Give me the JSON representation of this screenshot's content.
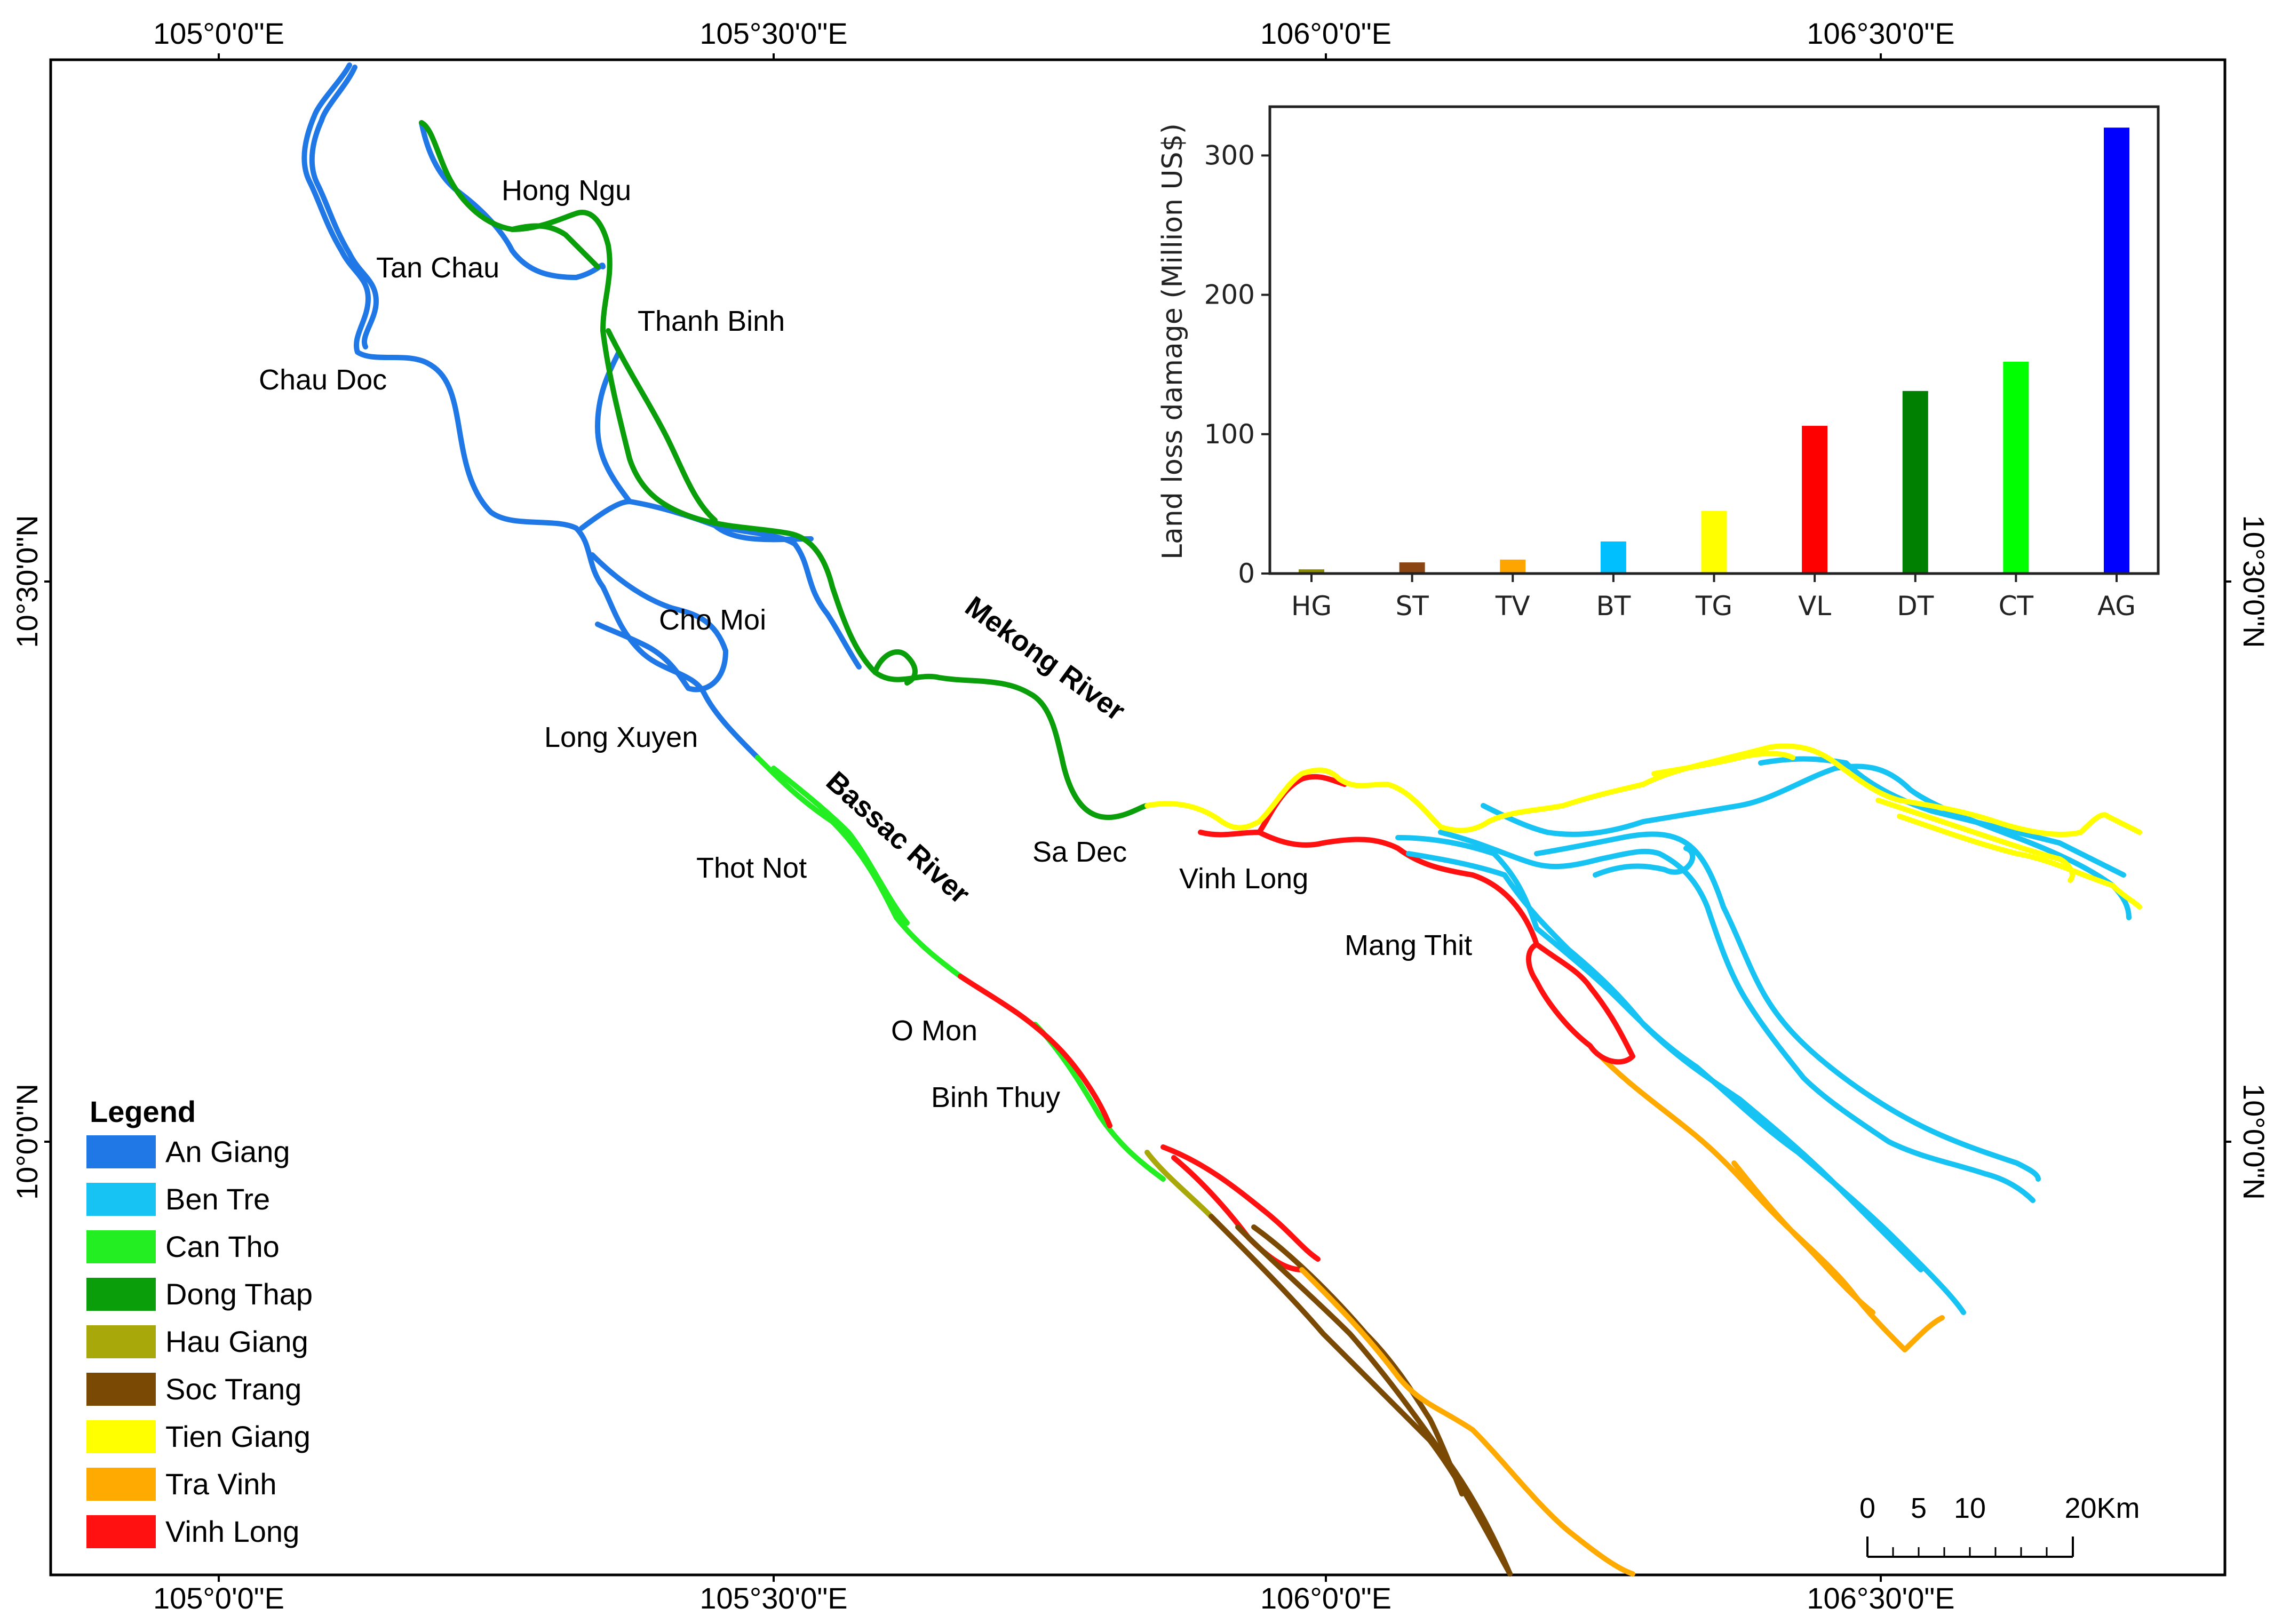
{
  "map": {
    "top_coords": [
      "105°0'0\"E",
      "105°30'0\"E",
      "106°0'0\"E",
      "106°30'0\"E"
    ],
    "bottom_coords": [
      "105°0'0\"E",
      "105°30'0\"E",
      "106°0'0\"E",
      "106°30'0\"E"
    ],
    "left_coords": [
      "10°30'0\"N",
      "10°0'0\"N"
    ],
    "right_coords": [
      "10°30'0\"N",
      "10°0'0\"N"
    ],
    "places": {
      "hong_ngu": "Hong Ngu",
      "tan_chau": "Tan Chau",
      "thanh_binh": "Thanh Binh",
      "chau_doc": "Chau Doc",
      "cho_moi": "Cho Moi",
      "long_xuyen": "Long Xuyen",
      "thot_not": "Thot Not",
      "sa_dec": "Sa Dec",
      "vinh_long": "Vinh Long",
      "mang_thit": "Mang Thit",
      "o_mon": "O Mon",
      "binh_thuy": "Binh Thuy"
    },
    "rivers": {
      "mekong": "Mekong River",
      "bassac": "Bassac River"
    }
  },
  "legend": {
    "title": "Legend",
    "items": [
      {
        "label": "An Giang",
        "color": "#1f78e6"
      },
      {
        "label": "Ben Tre",
        "color": "#16c3f2"
      },
      {
        "label": "Can Tho",
        "color": "#22ee22"
      },
      {
        "label": "Dong Thap",
        "color": "#0a9e0a"
      },
      {
        "label": "Hau Giang",
        "color": "#a8a80a"
      },
      {
        "label": "Soc Trang",
        "color": "#7a4a05"
      },
      {
        "label": "Tien Giang",
        "color": "#ffff00"
      },
      {
        "label": "Tra Vinh",
        "color": "#ffaa00"
      },
      {
        "label": "Vinh Long",
        "color": "#ff1111"
      }
    ]
  },
  "scale_bar": {
    "labels": [
      "0",
      "5",
      "10",
      "20Km"
    ]
  },
  "chart_data": {
    "type": "bar",
    "title": "",
    "xlabel": "",
    "ylabel": "Land loss damage (Million US$)",
    "categories": [
      "HG",
      "ST",
      "TV",
      "BT",
      "TG",
      "VL",
      "DT",
      "CT",
      "AG"
    ],
    "values": [
      3,
      8,
      10,
      23,
      45,
      106,
      131,
      152,
      320
    ],
    "colors": [
      "#8b8b00",
      "#8b4513",
      "#ffa500",
      "#00bfff",
      "#ffff00",
      "#ff0000",
      "#008000",
      "#00ff00",
      "#0000ff"
    ],
    "ylim": [
      0,
      335
    ],
    "yticks": [
      0,
      100,
      200,
      300
    ],
    "grid": false
  }
}
